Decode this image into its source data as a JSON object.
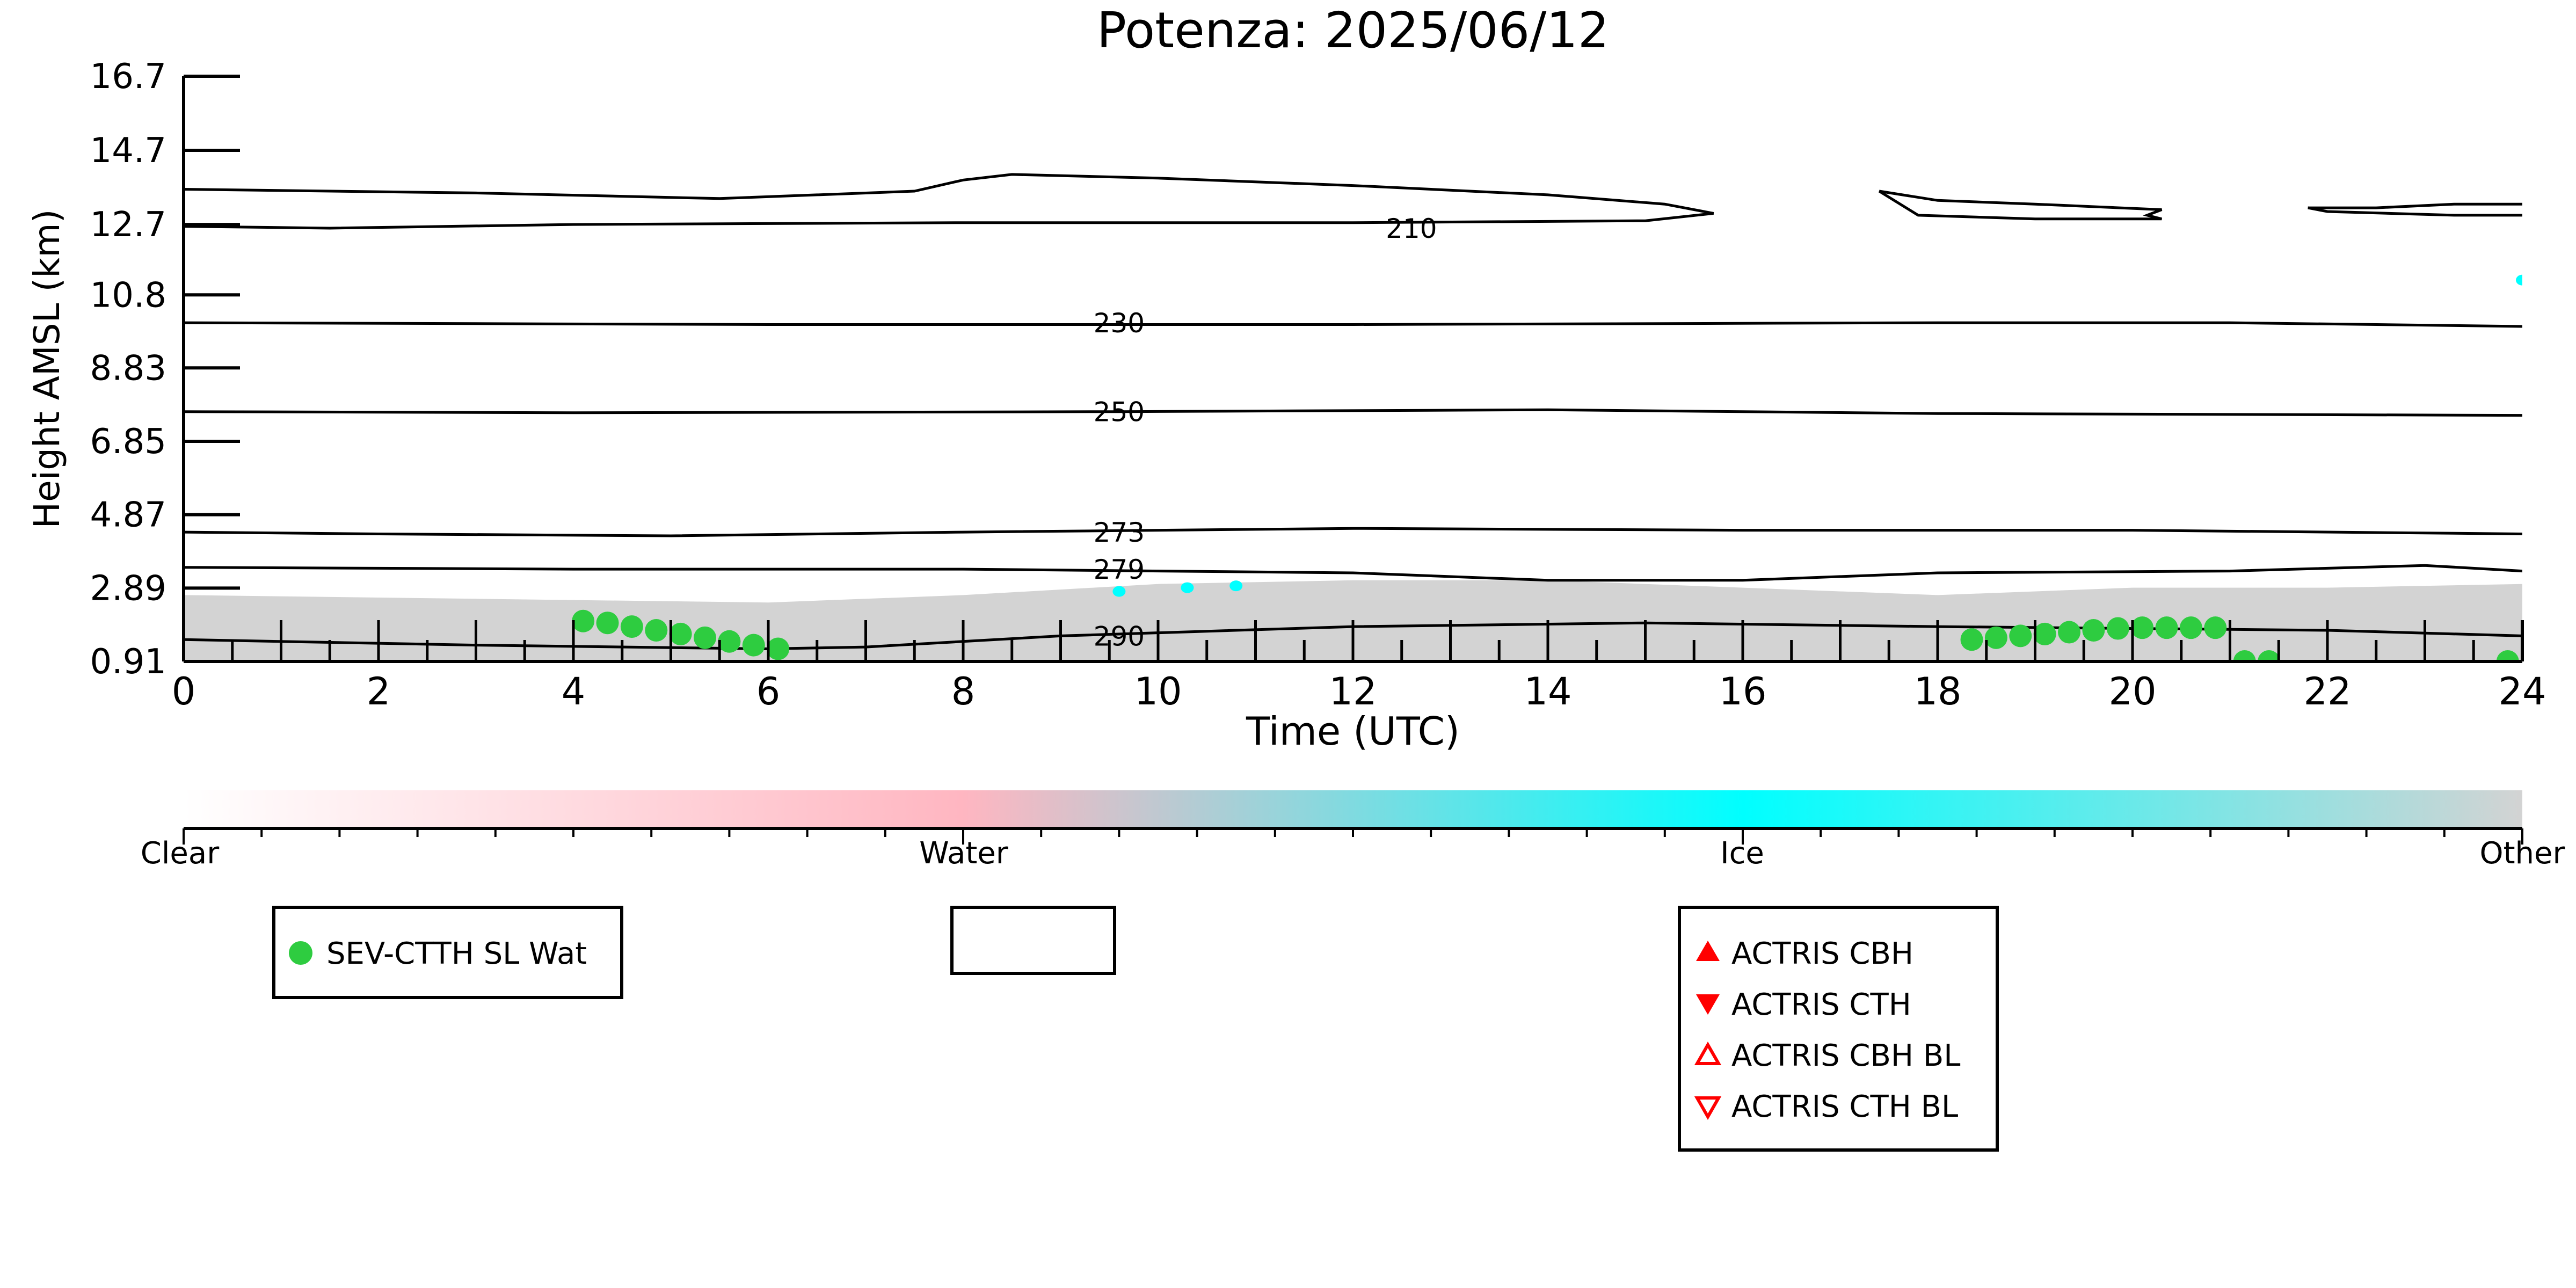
{
  "chart_data": {
    "type": "line",
    "title": "Potenza: 2025/06/12",
    "xlabel": "Time (UTC)",
    "ylabel": "Height AMSL (km)",
    "xlim": [
      0,
      24
    ],
    "ylim": [
      0.91,
      16.7
    ],
    "x_ticks": [
      0,
      2,
      4,
      6,
      8,
      10,
      12,
      14,
      16,
      18,
      20,
      22,
      24
    ],
    "y_ticks": [
      0.91,
      2.89,
      4.87,
      6.85,
      8.83,
      10.8,
      12.7,
      14.7,
      16.7
    ],
    "y_tick_labels": [
      "0.91",
      "2.89",
      "4.87",
      "6.85",
      "8.83",
      "10.8",
      "12.7",
      "14.7",
      "16.7"
    ],
    "isotherms": [
      {
        "label": "210",
        "label_at": [
          12.6,
          12.6
        ],
        "segments": [
          [
            [
              0,
              13.65
            ],
            [
              3,
              13.55
            ],
            [
              5.5,
              13.4
            ],
            [
              7.5,
              13.6
            ],
            [
              8,
              13.9
            ],
            [
              8.5,
              14.05
            ],
            [
              10,
              13.95
            ],
            [
              12,
              13.75
            ],
            [
              14,
              13.5
            ],
            [
              15.2,
              13.25
            ],
            [
              15.7,
              13.0
            ],
            [
              15,
              12.8
            ],
            [
              12,
              12.75
            ],
            [
              8,
              12.75
            ],
            [
              4,
              12.7
            ],
            [
              1.5,
              12.6
            ],
            [
              0,
              12.65
            ]
          ],
          [
            [
              17.4,
              13.6
            ],
            [
              18,
              13.35
            ],
            [
              19,
              13.25
            ],
            [
              20.3,
              13.1
            ],
            [
              20.15,
              12.95
            ],
            [
              20.3,
              12.85
            ],
            [
              19,
              12.85
            ],
            [
              17.8,
              12.95
            ],
            [
              17.4,
              13.6
            ]
          ],
          [
            [
              21.8,
              13.15
            ],
            [
              22.5,
              13.15
            ],
            [
              23.3,
              13.25
            ],
            [
              24,
              13.25
            ]
          ],
          [
            [
              21.8,
              13.15
            ],
            [
              22,
              13.05
            ],
            [
              23.3,
              12.95
            ],
            [
              24,
              12.95
            ]
          ]
        ]
      },
      {
        "label": "230",
        "label_at": [
          9.6,
          10.05
        ],
        "segments": [
          [
            [
              0,
              10.05
            ],
            [
              6,
              10.0
            ],
            [
              12,
              10.0
            ],
            [
              18,
              10.05
            ],
            [
              21,
              10.05
            ],
            [
              24,
              9.95
            ]
          ]
        ]
      },
      {
        "label": "250",
        "label_at": [
          9.6,
          7.65
        ],
        "segments": [
          [
            [
              0,
              7.65
            ],
            [
              4,
              7.62
            ],
            [
              9.6,
              7.65
            ],
            [
              14,
              7.7
            ],
            [
              18,
              7.6
            ],
            [
              24,
              7.55
            ]
          ]
        ]
      },
      {
        "label": "273",
        "label_at": [
          9.6,
          4.4
        ],
        "segments": [
          [
            [
              0,
              4.4
            ],
            [
              2,
              4.35
            ],
            [
              5,
              4.3
            ],
            [
              8,
              4.4
            ],
            [
              12,
              4.5
            ],
            [
              16,
              4.45
            ],
            [
              20,
              4.45
            ],
            [
              24,
              4.35
            ]
          ]
        ]
      },
      {
        "label": "279",
        "label_at": [
          9.6,
          3.4
        ],
        "segments": [
          [
            [
              0,
              3.45
            ],
            [
              4,
              3.4
            ],
            [
              8,
              3.4
            ],
            [
              12,
              3.3
            ],
            [
              14,
              3.1
            ],
            [
              16,
              3.1
            ],
            [
              18,
              3.3
            ],
            [
              21,
              3.35
            ],
            [
              23,
              3.5
            ],
            [
              24,
              3.35
            ]
          ]
        ]
      },
      {
        "label": "290",
        "label_at": [
          9.6,
          1.6
        ],
        "segments": [
          [
            [
              0,
              1.5
            ],
            [
              3,
              1.35
            ],
            [
              6,
              1.25
            ],
            [
              7,
              1.3
            ],
            [
              9,
              1.6
            ],
            [
              12,
              1.85
            ],
            [
              15,
              1.95
            ],
            [
              18,
              1.85
            ],
            [
              22,
              1.75
            ],
            [
              24,
              1.6
            ]
          ]
        ]
      }
    ],
    "cloud_mask_top": [
      [
        0,
        2.7
      ],
      [
        3,
        2.6
      ],
      [
        6,
        2.5
      ],
      [
        8,
        2.7
      ],
      [
        10,
        3.0
      ],
      [
        12,
        3.1
      ],
      [
        14,
        3.1
      ],
      [
        16,
        2.9
      ],
      [
        18,
        2.7
      ],
      [
        20,
        2.9
      ],
      [
        22,
        2.9
      ],
      [
        24,
        3.0
      ]
    ],
    "ice_points": [
      [
        9.6,
        2.8
      ],
      [
        10.3,
        2.9
      ],
      [
        10.8,
        2.95
      ],
      [
        24,
        11.2
      ]
    ],
    "series": [
      {
        "name": "SEV-CTTH SL Wat",
        "color": "#2ecc40",
        "marker": "circle",
        "points": [
          [
            4.1,
            2.0
          ],
          [
            4.35,
            1.95
          ],
          [
            4.6,
            1.85
          ],
          [
            4.85,
            1.75
          ],
          [
            5.1,
            1.65
          ],
          [
            5.35,
            1.55
          ],
          [
            5.6,
            1.45
          ],
          [
            5.85,
            1.35
          ],
          [
            6.1,
            1.25
          ],
          [
            18.35,
            1.5
          ],
          [
            18.6,
            1.55
          ],
          [
            18.85,
            1.6
          ],
          [
            19.1,
            1.65
          ],
          [
            19.35,
            1.7
          ],
          [
            19.6,
            1.75
          ],
          [
            19.85,
            1.8
          ],
          [
            20.1,
            1.82
          ],
          [
            20.35,
            1.82
          ],
          [
            20.6,
            1.82
          ],
          [
            20.85,
            1.82
          ],
          [
            21.15,
            0.91
          ],
          [
            21.4,
            0.91
          ],
          [
            23.85,
            0.91
          ]
        ]
      },
      {
        "name": "ACTRIS CBH",
        "color": "#ff0000",
        "marker": "triangle-up-filled",
        "points": []
      },
      {
        "name": "ACTRIS CTH",
        "color": "#ff0000",
        "marker": "triangle-down-filled",
        "points": []
      },
      {
        "name": "ACTRIS CBH BL",
        "color": "#ff0000",
        "marker": "triangle-up-open",
        "points": []
      },
      {
        "name": "ACTRIS CTH BL",
        "color": "#ff0000",
        "marker": "triangle-down-open",
        "points": []
      }
    ],
    "colorbar": {
      "labels": [
        "Clear",
        "Water",
        "Ice",
        "Other"
      ],
      "colors": [
        "#ffffff",
        "#ffb6c1",
        "#00ffff",
        "#d3d3d3"
      ]
    },
    "legends": [
      {
        "entries": [
          "SEV-CTTH SL Wat"
        ]
      },
      {
        "entries": []
      },
      {
        "entries": [
          "ACTRIS CBH",
          "ACTRIS CTH",
          "ACTRIS CBH BL",
          "ACTRIS CTH BL"
        ]
      }
    ],
    "colors": {
      "cloud_gray": "#d3d3d3",
      "ice": "#00ffff",
      "sat_marker": "#2ecc40",
      "actris": "#ff0000"
    }
  }
}
